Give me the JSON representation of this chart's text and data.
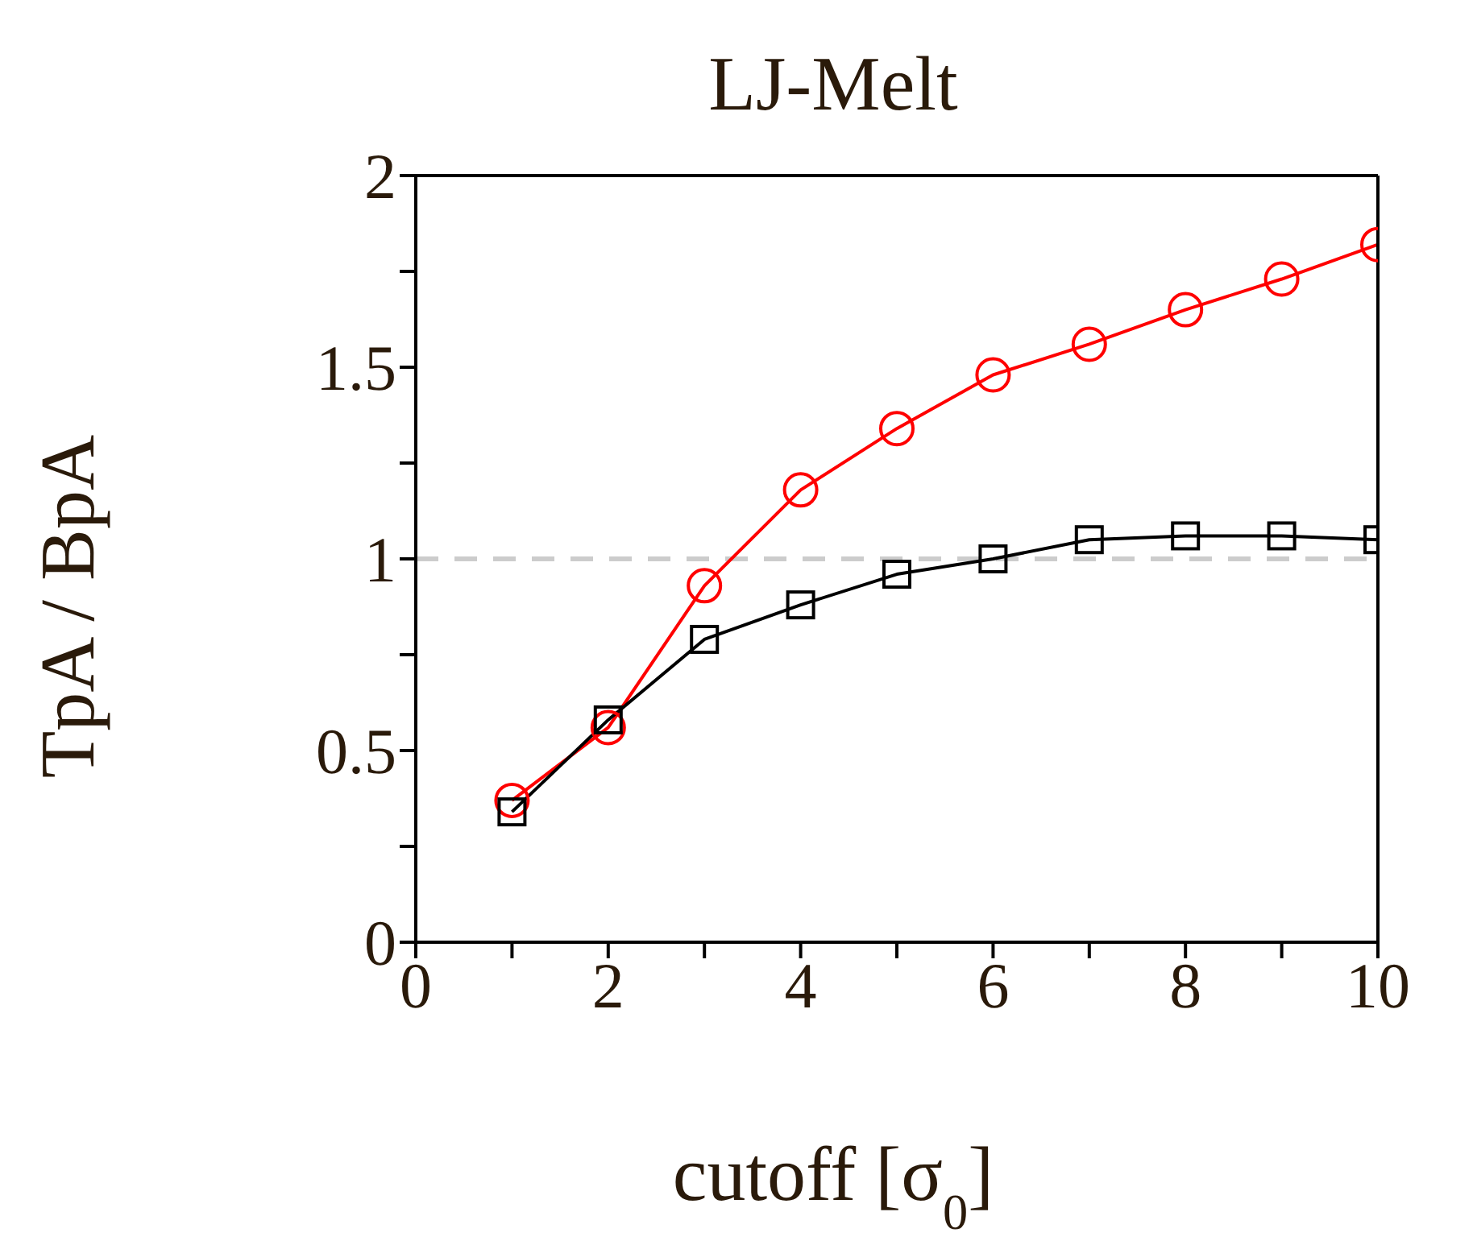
{
  "chart_data": {
    "type": "line",
    "title": "LJ-Melt",
    "xlabel": "cutoff [σ$_{0}$]",
    "ylabel": "TpA / BpA",
    "x": [
      1,
      2,
      3,
      4,
      5,
      6,
      7,
      8,
      9,
      10
    ],
    "series": [
      {
        "color": "#ff0000",
        "marker": "circle",
        "values": [
          0.37,
          0.56,
          0.93,
          1.18,
          1.34,
          1.48,
          1.56,
          1.65,
          1.73,
          1.82
        ]
      },
      {
        "color": "#000000",
        "marker": "square",
        "values": [
          0.34,
          0.58,
          0.79,
          0.88,
          0.96,
          1.0,
          1.05,
          1.06,
          1.06,
          1.05
        ]
      }
    ],
    "xlim": [
      0,
      10
    ],
    "ylim": [
      0,
      2
    ],
    "xticks": [
      0,
      {
        "value": 1,
        "label": null
      },
      2,
      {
        "value": 3,
        "label": null
      },
      4,
      {
        "value": 5,
        "label": null
      },
      6,
      {
        "value": 7,
        "label": null
      },
      8,
      {
        "value": 9,
        "label": null
      },
      10
    ],
    "yticks": [
      0,
      {
        "value": 0.25,
        "label": null
      },
      0.5,
      {
        "value": 0.75,
        "label": null
      },
      1,
      {
        "value": 1.25,
        "label": null
      },
      1.5,
      {
        "value": 1.75,
        "label": null
      },
      2
    ],
    "ref_lines": [
      {
        "axis": "y",
        "value": 1,
        "color": "#cccccc",
        "line_style": "dashed"
      }
    ],
    "grid": false,
    "legend": false,
    "line_style": "solid"
  }
}
